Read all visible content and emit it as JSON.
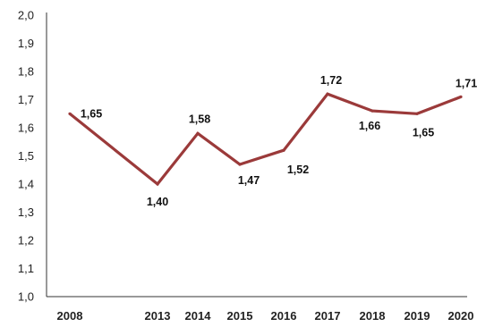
{
  "chart_data": {
    "type": "line",
    "title": "",
    "xlabel": "",
    "ylabel": "",
    "categories": [
      "2008",
      "2013",
      "2014",
      "2015",
      "2016",
      "2017",
      "2018",
      "2019",
      "2020"
    ],
    "series": [
      {
        "values": [
          1.65,
          1.4,
          1.58,
          1.47,
          1.52,
          1.72,
          1.66,
          1.65,
          1.71
        ],
        "labels": [
          "1,65",
          "1,40",
          "1,58",
          "1,47",
          "1,52",
          "1,72",
          "1,66",
          "1,65",
          "1,71"
        ],
        "color": "#9b3a3a"
      }
    ],
    "ylim": [
      1.0,
      2.0
    ],
    "yticks": [
      "1,0",
      "1,1",
      "1,2",
      "1,3",
      "1,4",
      "1,5",
      "1,6",
      "1,7",
      "1,8",
      "1,9",
      "2,0"
    ],
    "grid": false,
    "legend": "none"
  }
}
